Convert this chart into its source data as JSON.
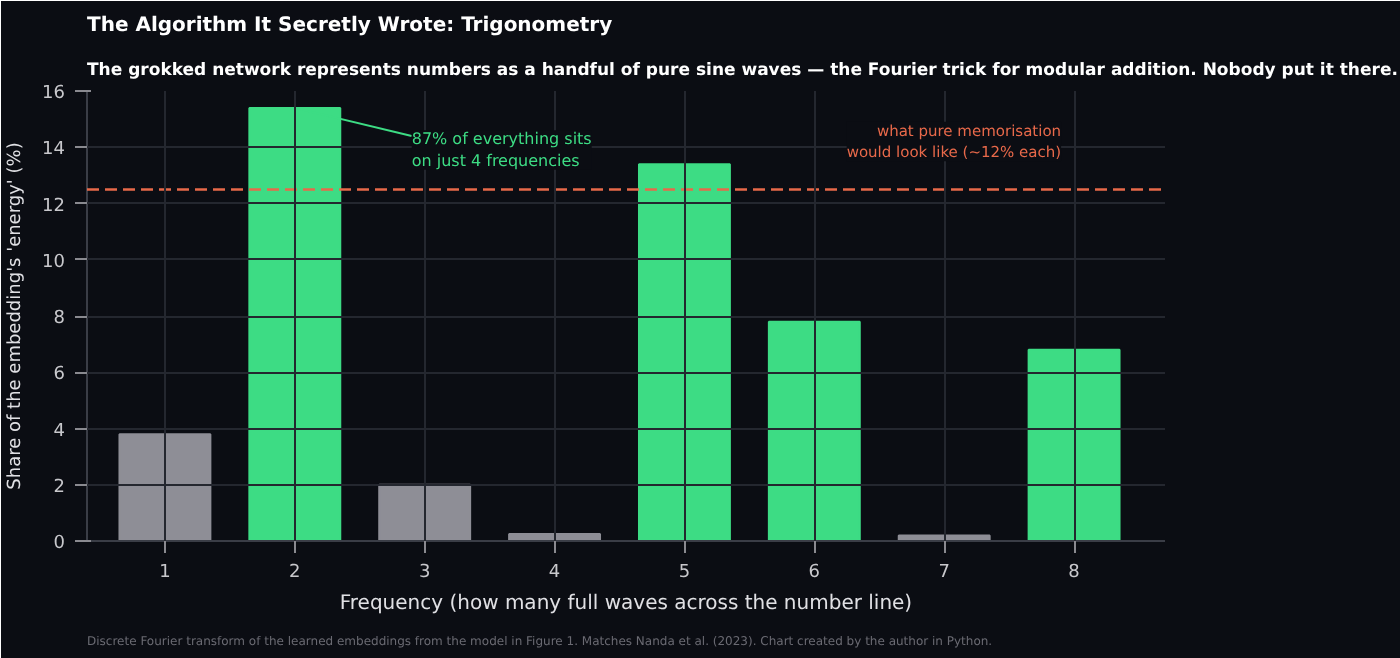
{
  "chart_data": {
    "type": "bar",
    "title": "The Algorithm It Secretly Wrote: Trigonometry",
    "subtitle": "The grokked network represents numbers as a handful of pure sine waves — the Fourier trick for modular addition. Nobody put it there.",
    "xlabel": "Frequency (how many full waves across the number line)",
    "ylabel": "Share of the embedding's 'energy' (%)",
    "categories": [
      "1",
      "2",
      "3",
      "4",
      "5",
      "6",
      "7",
      "8"
    ],
    "values": [
      3.8,
      15.4,
      2.0,
      0.25,
      13.4,
      7.8,
      0.2,
      6.8
    ],
    "colors": [
      "#8e8e96",
      "#3ddc84",
      "#8e8e96",
      "#8e8e96",
      "#3ddc84",
      "#3ddc84",
      "#8e8e96",
      "#3ddc84"
    ],
    "ylim": [
      0,
      16
    ],
    "yticks": [
      0,
      2,
      4,
      6,
      8,
      10,
      12,
      14,
      16
    ],
    "grid": true,
    "ref_lines": [
      {
        "axis": "y",
        "value": 12.5,
        "label": "what pure memorisation\nwould look like (~12% each)",
        "color": "#e8694a",
        "line_style": "dashed"
      }
    ],
    "annotations": [
      {
        "text": "87% of everything sits\non just 4 frequencies",
        "x": "2",
        "y": 15.4
      },
      "Discrete Fourier transform of the learned embeddings from the model in Figure 1. Matches Nanda et al. (2023). Chart created by the author in Python."
    ]
  }
}
